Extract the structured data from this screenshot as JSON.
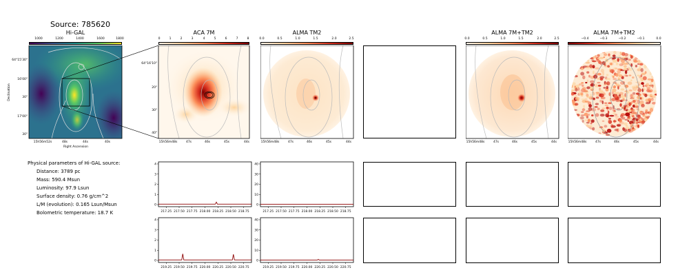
{
  "source_title": "Source: 785620",
  "panels": {
    "higal": {
      "title": "Hi-GAL",
      "colorbar_ticks": [
        "1000",
        "1200",
        "1400",
        "1600",
        "1800"
      ],
      "y_ticks": [
        "64°15'30\"",
        "16'00\"",
        "30\"",
        "17'00\"",
        "30\""
      ],
      "x_ticks": [
        "15h56m52s",
        "48s",
        "44s",
        "40s"
      ],
      "xlabel": "Right Ascension",
      "ylabel": "Declination"
    },
    "aca": {
      "title": "ACA 7M",
      "colorbar_ticks": [
        "0",
        "1",
        "2",
        "3",
        "4",
        "5",
        "6",
        "7",
        "8"
      ],
      "y_ticks": [
        "64°16'10\"",
        "20\"",
        "30\"",
        "40\""
      ],
      "x_ticks": [
        "15h56m48s",
        "47s",
        "46s",
        "45s",
        "44s"
      ]
    },
    "tm2": {
      "title": "ALMA TM2",
      "colorbar_ticks": [
        "0.0",
        "0.5",
        "1.0",
        "1.5",
        "2.0",
        "2.5"
      ],
      "x_ticks": [
        "15h56m48s",
        "47s",
        "46s",
        "45s",
        "44s"
      ]
    },
    "combo": {
      "title": "ALMA 7M+TM2",
      "colorbar_ticks": [
        "0.0",
        "0.5",
        "1.0",
        "1.5",
        "2.0",
        "2.5"
      ],
      "x_ticks": [
        "15h56m48s",
        "47s",
        "46s",
        "45s",
        "44s"
      ]
    },
    "resid": {
      "title": "ALMA 7M+TM2",
      "colorbar_ticks": [
        "−0.4",
        "−0.3",
        "−0.2",
        "−0.1",
        "0.0"
      ],
      "x_ticks": [
        "15h56m48s",
        "47s",
        "46s",
        "45s",
        "44s"
      ]
    }
  },
  "physical": {
    "header": "Physical parameters of Hi-GAL source:",
    "distance": "Distance: 3789 pc",
    "mass": "Mass: 590.4 Msun",
    "luminosity": "Luminosity: 97.9 Lsun",
    "surface_density": "Surface density: 0.76 g/cm^2",
    "lm": "L/M (evolution): 0.165 Lsun/Msun",
    "tbol": "Bolometric temperature: 18.7 K"
  },
  "chart_data": [
    {
      "type": "line",
      "name": "spectrum-aca-row1",
      "x_ticks": [
        "217.25",
        "217.50",
        "217.75",
        "218.00",
        "218.25",
        "218.50",
        "218.75"
      ],
      "y_ticks": [
        "0",
        "1",
        "2",
        "3",
        "4"
      ],
      "xlim": [
        217.1,
        218.9
      ],
      "ylim": [
        -0.2,
        4.2
      ],
      "x": [
        217.1,
        217.5,
        218.0,
        218.2,
        218.22,
        218.24,
        218.5,
        218.9
      ],
      "y": [
        0.05,
        0.05,
        0.05,
        0.05,
        0.25,
        0.05,
        0.05,
        0.05
      ]
    },
    {
      "type": "line",
      "name": "spectrum-tm2-row1",
      "x_ticks": [
        "217.25",
        "217.50",
        "217.75",
        "218.00",
        "218.25",
        "218.50",
        "218.75"
      ],
      "y_ticks": [
        "0",
        "10",
        "20",
        "30",
        "40"
      ],
      "xlim": [
        217.1,
        218.9
      ],
      "ylim": [
        -2,
        42
      ],
      "x": [
        217.1,
        217.5,
        218.0,
        218.5,
        218.9
      ],
      "y": [
        0.3,
        0.3,
        0.3,
        0.3,
        0.3
      ]
    },
    {
      "type": "line",
      "name": "spectrum-aca-row2",
      "x_ticks": [
        "219.25",
        "219.50",
        "219.75",
        "220.00",
        "220.25",
        "220.50",
        "220.75"
      ],
      "y_ticks": [
        "0",
        "1",
        "2",
        "3",
        "4"
      ],
      "xlim": [
        219.1,
        220.9
      ],
      "ylim": [
        -0.2,
        4.2
      ],
      "x": [
        219.1,
        219.55,
        219.57,
        219.59,
        220.0,
        220.53,
        220.55,
        220.57,
        220.9
      ],
      "y": [
        0.05,
        0.05,
        0.65,
        0.05,
        0.05,
        0.05,
        0.6,
        0.05,
        0.05
      ]
    },
    {
      "type": "line",
      "name": "spectrum-tm2-row2",
      "x_ticks": [
        "219.25",
        "219.50",
        "219.75",
        "220.00",
        "220.25",
        "220.50",
        "220.75"
      ],
      "y_ticks": [
        "0",
        "10",
        "20",
        "30",
        "40"
      ],
      "xlim": [
        219.1,
        220.9
      ],
      "ylim": [
        -2,
        42
      ],
      "x": [
        219.1,
        220.2,
        220.22,
        220.24,
        220.9
      ],
      "y": [
        0.3,
        0.3,
        1.1,
        0.3,
        0.3
      ]
    }
  ],
  "colors": {
    "viridis": [
      "#440154",
      "#3b528b",
      "#21918c",
      "#5ec962",
      "#fde725"
    ],
    "orrd": [
      "#fff7ec",
      "#fdd49e",
      "#fc8d59",
      "#d7301f",
      "#7f0000"
    ],
    "spectrum_line": "#8b0000",
    "contour": "#bbbbbb"
  }
}
